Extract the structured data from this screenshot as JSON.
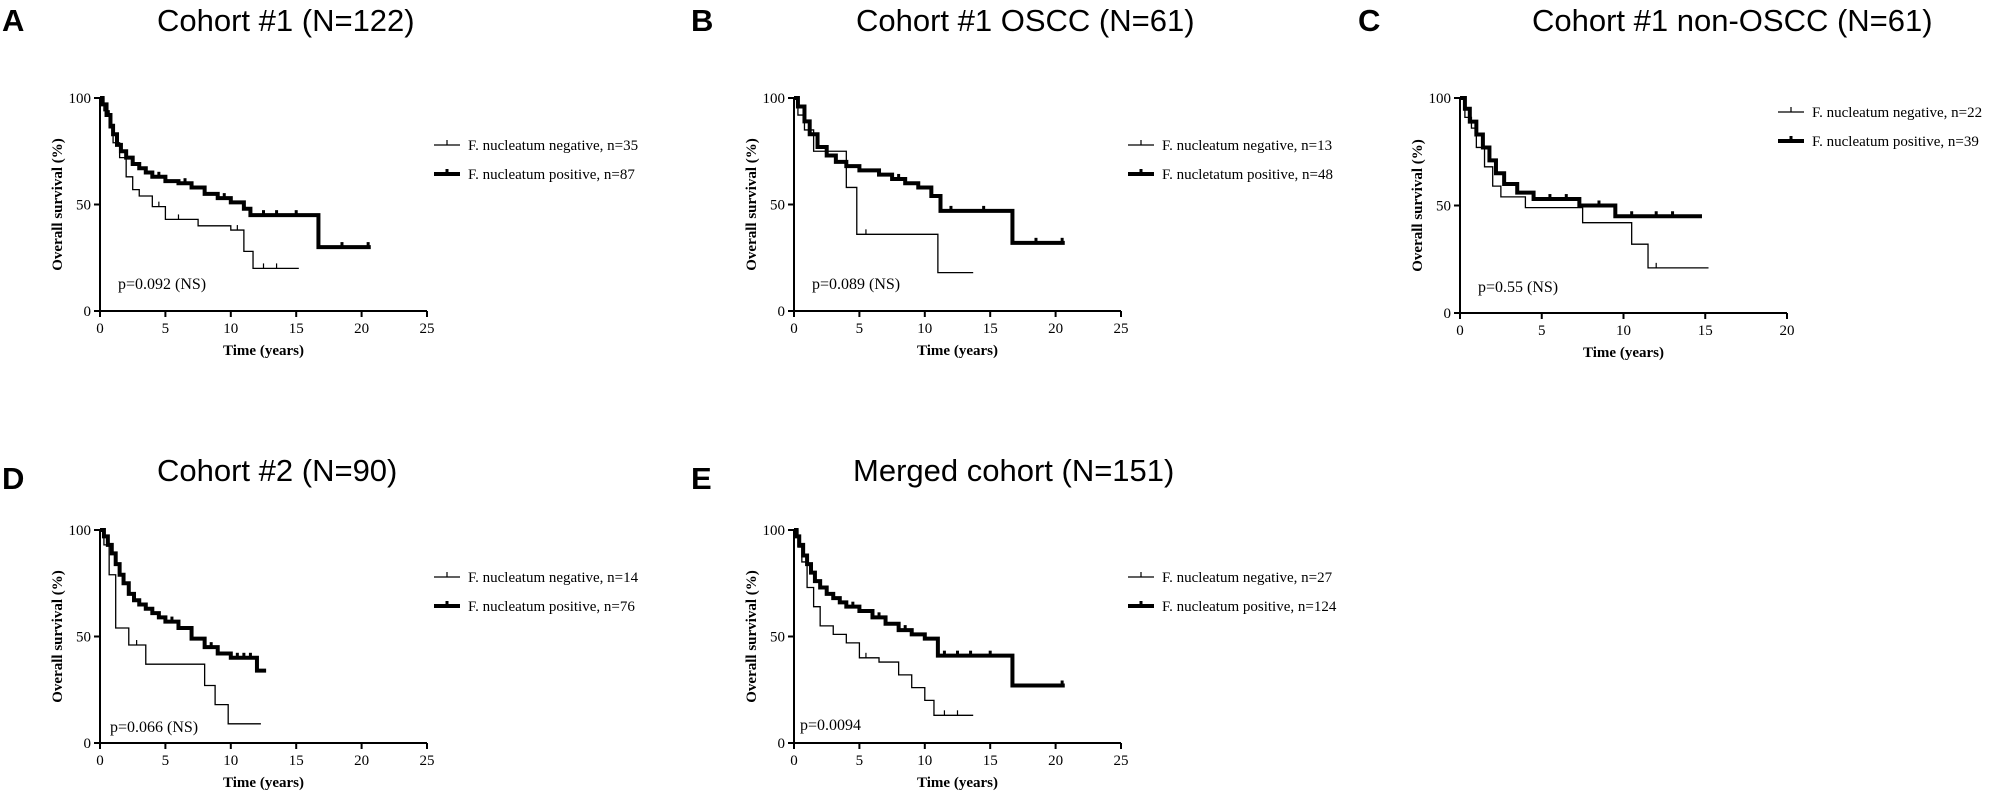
{
  "chart_data": [
    {
      "type": "line",
      "panel": "A",
      "title": "Cohort #1 (N=122)",
      "xlabel": "Time (years)",
      "ylabel": "Overall survival (%)",
      "xlim": [
        0,
        25
      ],
      "ylim": [
        0,
        100
      ],
      "xticks": [
        "0",
        "5",
        "10",
        "15",
        "20",
        "25"
      ],
      "yticks": [
        "0",
        "50",
        "100"
      ],
      "pvalue": "p=0.092 (NS)",
      "series": [
        {
          "name": "F. nucleatum negative, n=35",
          "style": "thin",
          "x": [
            0,
            0.3,
            0.7,
            1.0,
            1.5,
            2.0,
            2.5,
            3.0,
            4.0,
            5.0,
            7.5,
            10.0,
            11.0,
            11.7,
            15.2
          ],
          "y": [
            100,
            94,
            86,
            79,
            72,
            63,
            57,
            54,
            49,
            43,
            40,
            38,
            28,
            20,
            20
          ],
          "censor_x": [
            1.3,
            4.5,
            6.0,
            10.5,
            12.5,
            13.5
          ]
        },
        {
          "name": "F. nucleatum positive, n=87",
          "style": "thick",
          "x": [
            0,
            0.2,
            0.5,
            0.8,
            1.0,
            1.3,
            1.6,
            2.0,
            2.5,
            3.0,
            3.5,
            4.0,
            5.0,
            6.0,
            7.0,
            8.0,
            9.0,
            10.0,
            11.0,
            11.5,
            16.7,
            20.7
          ],
          "y": [
            100,
            97,
            92,
            87,
            83,
            78,
            75,
            72,
            69,
            67,
            65,
            63,
            61,
            60,
            58,
            55,
            53,
            51,
            48,
            45,
            30,
            30
          ],
          "censor_x": [
            4.5,
            6.5,
            9.5,
            12.5,
            13.5,
            15.0,
            18.5,
            20.5
          ]
        }
      ]
    },
    {
      "type": "line",
      "panel": "B",
      "title": "Cohort #1 OSCC (N=61)",
      "xlabel": "Time (years)",
      "ylabel": "Overall survival (%)",
      "xlim": [
        0,
        25
      ],
      "ylim": [
        0,
        100
      ],
      "xticks": [
        "0",
        "5",
        "10",
        "15",
        "20",
        "25"
      ],
      "yticks": [
        "0",
        "50",
        "100"
      ],
      "pvalue": "p=0.089 (NS)",
      "series": [
        {
          "name": "F. nucleatum negative, n=13",
          "style": "thin",
          "x": [
            0,
            0.3,
            0.8,
            1.5,
            4.0,
            4.8,
            11.0,
            13.7
          ],
          "y": [
            100,
            92,
            85,
            75,
            58,
            36,
            18,
            18
          ],
          "censor_x": [
            5.5
          ]
        },
        {
          "name": "F. nucletatum positive, n=48",
          "style": "thick",
          "x": [
            0,
            0.3,
            0.8,
            1.2,
            1.8,
            2.5,
            3.2,
            4.0,
            5.0,
            6.5,
            7.5,
            8.5,
            9.5,
            10.5,
            11.2,
            16.7,
            20.7
          ],
          "y": [
            100,
            96,
            89,
            83,
            77,
            73,
            70,
            68,
            66,
            64,
            62,
            60,
            58,
            54,
            47,
            32,
            32
          ],
          "censor_x": [
            8.0,
            12.0,
            14.5,
            18.5,
            20.5
          ]
        }
      ]
    },
    {
      "type": "line",
      "panel": "C",
      "title": "Cohort #1 non-OSCC (N=61)",
      "xlabel": "Time (years)",
      "ylabel": "Overall survival (%)",
      "xlim": [
        0,
        20
      ],
      "ylim": [
        0,
        100
      ],
      "xticks": [
        "0",
        "5",
        "10",
        "15",
        "20"
      ],
      "yticks": [
        "0",
        "50",
        "100"
      ],
      "pvalue": "p=0.55 (NS)",
      "series": [
        {
          "name": "F. nucleatum negative, n=22",
          "style": "thin",
          "x": [
            0,
            0.3,
            0.7,
            1.0,
            1.5,
            2.0,
            2.5,
            4.0,
            7.5,
            10.5,
            11.5,
            15.2
          ],
          "y": [
            100,
            91,
            86,
            77,
            68,
            59,
            54,
            49,
            42,
            32,
            21,
            21
          ],
          "censor_x": [
            12.0
          ]
        },
        {
          "name": "F. nucleatum positive, n=39",
          "style": "thick",
          "x": [
            0,
            0.3,
            0.6,
            1.0,
            1.4,
            1.8,
            2.2,
            2.7,
            3.5,
            4.5,
            7.3,
            9.5,
            14.8
          ],
          "y": [
            100,
            95,
            89,
            83,
            77,
            71,
            65,
            60,
            56,
            53,
            50,
            45,
            45
          ],
          "censor_x": [
            5.5,
            6.5,
            8.5,
            10.5,
            12.0,
            13.0
          ]
        }
      ]
    },
    {
      "type": "line",
      "panel": "D",
      "title": "Cohort #2 (N=90)",
      "xlabel": "Time (years)",
      "ylabel": "Overall survival (%)",
      "xlim": [
        0,
        25
      ],
      "ylim": [
        0,
        100
      ],
      "xticks": [
        "0",
        "5",
        "10",
        "15",
        "20",
        "25"
      ],
      "yticks": [
        "0",
        "50",
        "100"
      ],
      "pvalue": "p=0.066 (NS)",
      "series": [
        {
          "name": "F. nucleatum negative, n=14",
          "style": "thin",
          "x": [
            0,
            0.3,
            0.7,
            1.2,
            2.2,
            3.5,
            8.0,
            8.8,
            9.8,
            12.3
          ],
          "y": [
            100,
            93,
            79,
            54,
            46,
            37,
            27,
            18,
            9,
            9
          ],
          "censor_x": [
            2.8
          ]
        },
        {
          "name": "F. nucleatum positive, n=76",
          "style": "thick",
          "x": [
            0,
            0.3,
            0.6,
            0.9,
            1.2,
            1.5,
            1.8,
            2.2,
            2.6,
            3.0,
            3.5,
            4.0,
            4.5,
            5.0,
            6.0,
            7.0,
            8.0,
            9.0,
            10.0,
            12.0,
            12.7
          ],
          "y": [
            100,
            97,
            93,
            89,
            84,
            79,
            75,
            70,
            67,
            65,
            63,
            61,
            59,
            57,
            54,
            49,
            45,
            42,
            40,
            34,
            34
          ],
          "censor_x": [
            5.5,
            8.5,
            10.5,
            11.0,
            11.5
          ]
        }
      ]
    },
    {
      "type": "line",
      "panel": "E",
      "title": "Merged cohort (N=151)",
      "xlabel": "Time (years)",
      "ylabel": "Overall survival (%)",
      "xlim": [
        0,
        25
      ],
      "ylim": [
        0,
        100
      ],
      "xticks": [
        "0",
        "5",
        "10",
        "15",
        "20",
        "25"
      ],
      "yticks": [
        "0",
        "50",
        "100"
      ],
      "pvalue": "p=0.0094",
      "series": [
        {
          "name": "F. nucleatum negative, n=27",
          "style": "thin",
          "x": [
            0,
            0.3,
            0.6,
            1.0,
            1.5,
            2.0,
            3.0,
            4.0,
            5.0,
            6.5,
            8.0,
            9.0,
            10.0,
            10.7,
            13.7
          ],
          "y": [
            100,
            92,
            85,
            73,
            64,
            55,
            51,
            47,
            40,
            38,
            32,
            26,
            20,
            13,
            13
          ],
          "censor_x": [
            5.5,
            11.5,
            12.5
          ]
        },
        {
          "name": "F. nucleatum positive, n=124",
          "style": "thick",
          "x": [
            0,
            0.2,
            0.4,
            0.7,
            1.0,
            1.3,
            1.6,
            2.0,
            2.5,
            3.0,
            3.5,
            4.0,
            5.0,
            6.0,
            7.0,
            8.0,
            9.0,
            10.0,
            11.0,
            16.7,
            20.7
          ],
          "y": [
            100,
            97,
            93,
            88,
            84,
            80,
            76,
            73,
            70,
            68,
            66,
            64,
            62,
            59,
            56,
            53,
            51,
            49,
            41,
            27,
            27
          ],
          "censor_x": [
            4.5,
            6.5,
            8.5,
            11.5,
            12.5,
            13.5,
            15.0,
            20.5
          ]
        }
      ]
    }
  ]
}
